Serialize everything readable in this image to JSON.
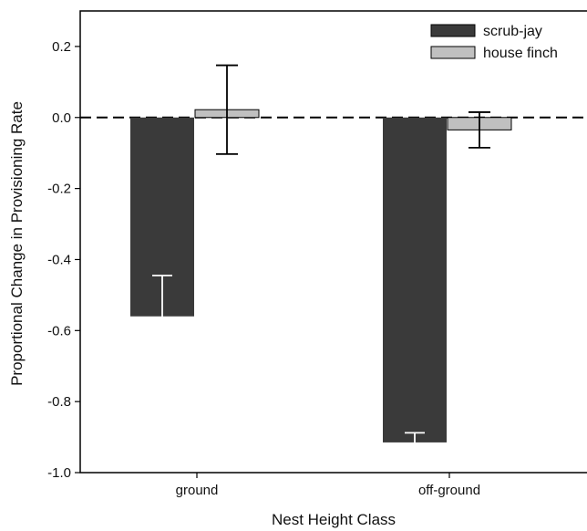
{
  "chart_data": {
    "type": "bar",
    "title": "",
    "xlabel": "Nest Height Class",
    "ylabel": "Proportional Change in Provisioning Rate",
    "categories": [
      "ground",
      "off-ground"
    ],
    "ylim": [
      -1.0,
      0.3
    ],
    "yticks": [
      0.2,
      0.0,
      -0.2,
      -0.4,
      -0.6,
      -0.8,
      -1.0
    ],
    "ytick_labels": [
      "0.2",
      "0.0",
      "-0.2",
      "-0.4",
      "-0.6",
      "-0.8",
      "-1.0"
    ],
    "series": [
      {
        "name": "scrub-jay",
        "values": [
          -0.56,
          -0.915
        ],
        "error": [
          0.115,
          0.027
        ],
        "color": "#3a3a3a",
        "errorbar_color": "#ffffff"
      },
      {
        "name": "house finch",
        "values": [
          0.022,
          -0.035
        ],
        "error": [
          0.125,
          0.05
        ],
        "color": "#c0c0c0",
        "errorbar_color": "#000000"
      }
    ],
    "reference_line": {
      "y": 0.0,
      "style": "dashed"
    },
    "legend": {
      "position": "top-right"
    },
    "grid": false
  }
}
